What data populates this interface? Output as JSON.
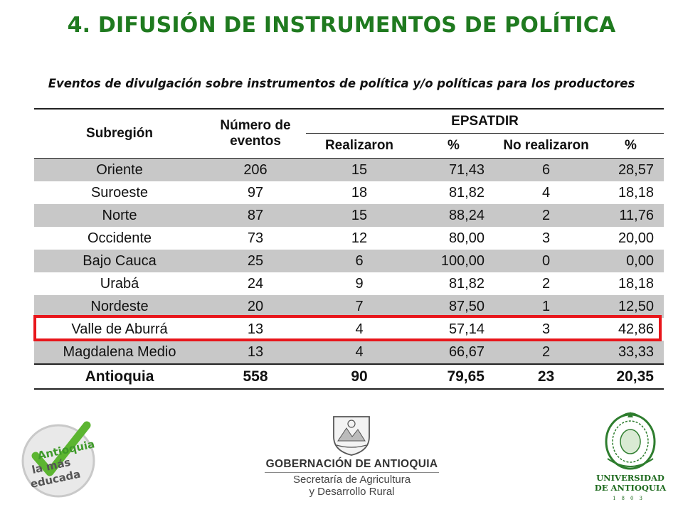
{
  "title": "4. DIFUSIÓN DE INSTRUMENTOS DE POLÍTICA",
  "subtitle": "Eventos de divulgación sobre instrumentos de política y/o políticas para los productores",
  "table": {
    "col_subregion": "Subregión",
    "col_eventos": "Número de eventos",
    "group_header": "EPSATDIR",
    "col_realizaron": "Realizaron",
    "col_pct1": "%",
    "col_no_realizaron": "No realizaron",
    "col_pct2": "%",
    "rows": [
      {
        "subregion": "Oriente",
        "eventos": "206",
        "realizaron": "15",
        "pct1": "71,43",
        "no": "6",
        "pct2": "28,57"
      },
      {
        "subregion": "Suroeste",
        "eventos": "97",
        "realizaron": "18",
        "pct1": "81,82",
        "no": "4",
        "pct2": "18,18"
      },
      {
        "subregion": "Norte",
        "eventos": "87",
        "realizaron": "15",
        "pct1": "88,24",
        "no": "2",
        "pct2": "11,76"
      },
      {
        "subregion": "Occidente",
        "eventos": "73",
        "realizaron": "12",
        "pct1": "80,00",
        "no": "3",
        "pct2": "20,00"
      },
      {
        "subregion": "Bajo Cauca",
        "eventos": "25",
        "realizaron": "6",
        "pct1": "100,00",
        "no": "0",
        "pct2": "0,00"
      },
      {
        "subregion": "Urabá",
        "eventos": "24",
        "realizaron": "9",
        "pct1": "81,82",
        "no": "2",
        "pct2": "18,18"
      },
      {
        "subregion": "Nordeste",
        "eventos": "20",
        "realizaron": "7",
        "pct1": "87,50",
        "no": "1",
        "pct2": "12,50"
      },
      {
        "subregion": "Valle de Aburrá",
        "eventos": "13",
        "realizaron": "4",
        "pct1": "57,14",
        "no": "3",
        "pct2": "42,86"
      },
      {
        "subregion": "Magdalena Medio",
        "eventos": "13",
        "realizaron": "4",
        "pct1": "66,67",
        "no": "2",
        "pct2": "33,33"
      }
    ],
    "total": {
      "subregion": "Antioquia",
      "eventos": "558",
      "realizaron": "90",
      "pct1": "79,65",
      "no": "23",
      "pct2": "20,35"
    }
  },
  "logos": {
    "left_line1": "Antioquia",
    "left_line2": "la más",
    "left_line3": "educada",
    "gob_name": "GOBERNACIÓN DE ANTIOQUIA",
    "gob_sec_line1": "Secretaría de Agricultura",
    "gob_sec_line2": "y Desarrollo Rural",
    "udea_line1": "UNIVERSIDAD",
    "udea_line2": "DE ANTIOQUIA",
    "udea_year": "1803"
  },
  "colors": {
    "title": "#1f7a1f",
    "highlight": "#e8161b",
    "shade": "#c8c8c8"
  }
}
